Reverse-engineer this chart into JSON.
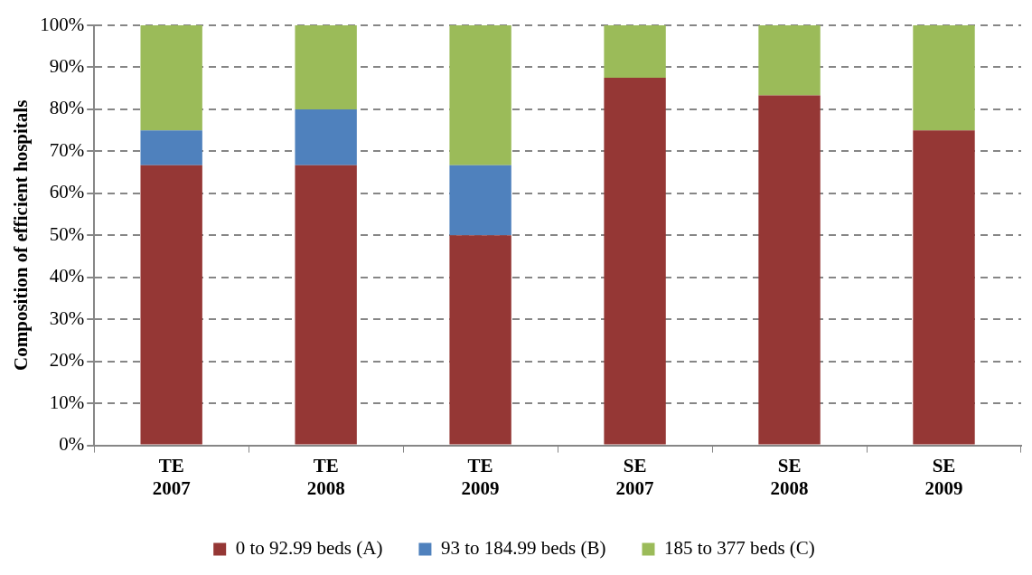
{
  "chart_data": {
    "type": "bar",
    "ylabel": "Composition of efficient hospitals",
    "categories": [
      "TE\n2007",
      "TE\n2008",
      "TE\n2009",
      "SE\n2007",
      "SE\n2008",
      "SE\n2009"
    ],
    "stacked": true,
    "series": [
      {
        "name": "0 to 92.99 beds (A)",
        "color": "#953735",
        "values": [
          66.7,
          66.7,
          50,
          87.5,
          83.3,
          75
        ]
      },
      {
        "name": "93 to 184.99 beds (B)",
        "color": "#4f81bd",
        "values": [
          8.3,
          13.3,
          16.7,
          0,
          0,
          0
        ]
      },
      {
        "name": "185 to 377 beds (C)",
        "color": "#9bbb59",
        "values": [
          25,
          20,
          33.3,
          12.5,
          16.7,
          25
        ]
      }
    ],
    "ylim": [
      0,
      100
    ],
    "yticks": [
      {
        "value": 0,
        "label": "0%"
      },
      {
        "value": 10,
        "label": "10%"
      },
      {
        "value": 20,
        "label": "20%"
      },
      {
        "value": 30,
        "label": "30%"
      },
      {
        "value": 40,
        "label": "40%"
      },
      {
        "value": 50,
        "label": "50%"
      },
      {
        "value": 60,
        "label": "60%"
      },
      {
        "value": 70,
        "label": "70%"
      },
      {
        "value": 80,
        "label": "80%"
      },
      {
        "value": 90,
        "label": "90%"
      },
      {
        "value": 100,
        "label": "100%"
      }
    ],
    "grid": "y",
    "legend": "bottom"
  }
}
